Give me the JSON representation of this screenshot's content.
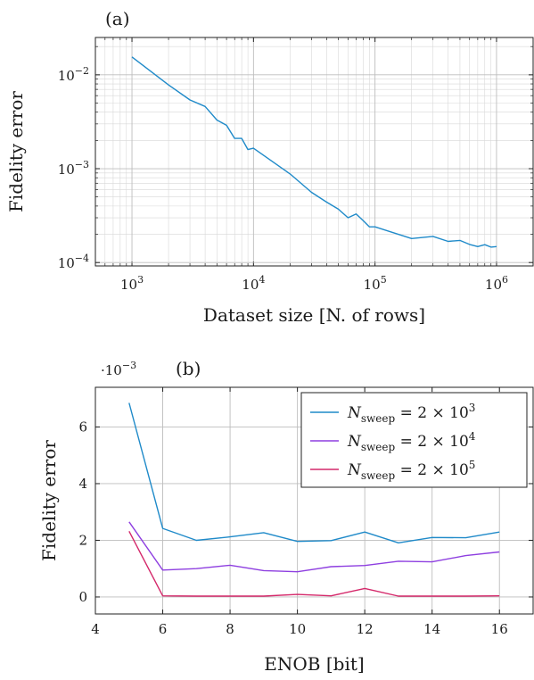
{
  "chart_data": [
    {
      "type": "line",
      "panel_label": "(a)",
      "xlabel": "Dataset size [N. of rows]",
      "ylabel": "Fidelity error",
      "xscale": "log",
      "yscale": "log",
      "xlim": [
        500,
        2000000
      ],
      "ylim": [
        9.2e-05,
        0.025
      ],
      "x_ticks": [
        1000,
        10000,
        100000,
        1000000
      ],
      "x_tick_labels": [
        {
          "base": "10",
          "exp": "3"
        },
        {
          "base": "10",
          "exp": "4"
        },
        {
          "base": "10",
          "exp": "5"
        },
        {
          "base": "10",
          "exp": "6"
        }
      ],
      "y_ticks": [
        0.0001,
        0.001,
        0.01
      ],
      "y_tick_labels": [
        {
          "base": "10",
          "exp": "−4"
        },
        {
          "base": "10",
          "exp": "−3"
        },
        {
          "base": "10",
          "exp": "−2"
        }
      ],
      "grid": true,
      "series": [
        {
          "color": "#1f8ac9",
          "x": [
            1000,
            2000,
            3000,
            4000,
            5000,
            6000,
            7000,
            8000,
            9000,
            10000,
            20000,
            30000,
            40000,
            50000,
            60000,
            70000,
            80000,
            90000,
            100000,
            200000,
            300000,
            400000,
            500000,
            600000,
            700000,
            800000,
            900000,
            1000000
          ],
          "y": [
            0.0155,
            0.0078,
            0.0054,
            0.0046,
            0.0033,
            0.0029,
            0.0021,
            0.0021,
            0.0016,
            0.00165,
            0.00088,
            0.00056,
            0.00044,
            0.00037,
            0.0003,
            0.00033,
            0.00028,
            0.00024,
            0.00024,
            0.00018,
            0.00019,
            0.000168,
            0.000172,
            0.000156,
            0.000148,
            0.000155,
            0.000146,
            0.000148
          ]
        }
      ]
    },
    {
      "type": "line",
      "panel_label": "(b)",
      "multiplier_label": "·10",
      "multiplier_exp": "−3",
      "xlabel": "ENOB [bit]",
      "ylabel": "Fidelity error",
      "xlim": [
        4,
        17
      ],
      "ylim": [
        -0.6,
        7.4
      ],
      "x_ticks": [
        4,
        6,
        8,
        10,
        12,
        14,
        16
      ],
      "y_ticks": [
        0,
        2,
        4,
        6
      ],
      "grid": true,
      "legend_position": "top-right",
      "series": [
        {
          "name_prefix": "N",
          "name_sub": "sweep",
          "name_suffix": " = 2 × 10",
          "name_exp": "3",
          "color": "#1f8ac9",
          "x": [
            5,
            6,
            7,
            8,
            9,
            10,
            11,
            12,
            13,
            14,
            15,
            16
          ],
          "y": [
            6.85,
            2.42,
            2.0,
            2.12,
            2.27,
            1.96,
            1.99,
            2.29,
            1.91,
            2.1,
            2.09,
            2.29
          ]
        },
        {
          "name_prefix": "N",
          "name_sub": "sweep",
          "name_suffix": " = 2 × 10",
          "name_exp": "4",
          "color": "#8e3fe0",
          "x": [
            5,
            6,
            7,
            8,
            9,
            10,
            11,
            12,
            13,
            14,
            15,
            16
          ],
          "y": [
            2.65,
            0.95,
            1.0,
            1.12,
            0.93,
            0.89,
            1.07,
            1.11,
            1.26,
            1.24,
            1.46,
            1.59
          ]
        },
        {
          "name_prefix": "N",
          "name_sub": "sweep",
          "name_suffix": " = 2 × 10",
          "name_exp": "5",
          "color": "#d4286a",
          "x": [
            5,
            6,
            7,
            8,
            9,
            10,
            11,
            12,
            13,
            14,
            15,
            16
          ],
          "y": [
            2.32,
            0.04,
            0.03,
            0.03,
            0.03,
            0.09,
            0.04,
            0.3,
            0.03,
            0.03,
            0.03,
            0.04
          ]
        }
      ]
    }
  ]
}
